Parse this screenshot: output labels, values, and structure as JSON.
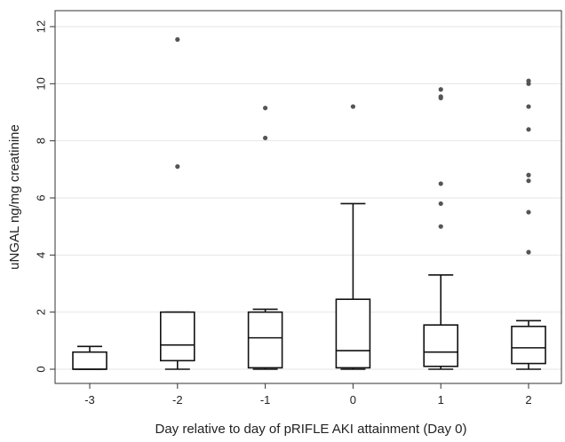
{
  "chart_data": {
    "type": "box",
    "xlabel": "Day relative to day of pRIFLE AKI attainment (Day 0)",
    "ylabel": "uNGAL ng/mg creatinine",
    "ylim": [
      0,
      12.5
    ],
    "yticks": [
      0,
      2,
      4,
      6,
      8,
      10,
      12
    ],
    "ytick_labels": [
      "0",
      "2",
      "4",
      "6",
      "8",
      "10",
      "12"
    ],
    "grid": true,
    "categories": [
      "-3",
      "-2",
      "-1",
      "0",
      "1",
      "2"
    ],
    "boxes": [
      {
        "category": "-3",
        "whisker_low": 0.0,
        "q1": 0.0,
        "median": 0.0,
        "q3": 0.6,
        "whisker_high": 0.8,
        "outliers": []
      },
      {
        "category": "-2",
        "whisker_low": 0.0,
        "q1": 0.3,
        "median": 0.85,
        "q3": 2.0,
        "whisker_high": 2.0,
        "outliers": [
          7.1,
          11.55
        ]
      },
      {
        "category": "-1",
        "whisker_low": 0.0,
        "q1": 0.05,
        "median": 1.1,
        "q3": 2.0,
        "whisker_high": 2.1,
        "outliers": [
          8.1,
          9.15
        ]
      },
      {
        "category": "0",
        "whisker_low": 0.0,
        "q1": 0.05,
        "median": 0.65,
        "q3": 2.45,
        "whisker_high": 5.8,
        "outliers": [
          9.2
        ]
      },
      {
        "category": "1",
        "whisker_low": 0.0,
        "q1": 0.1,
        "median": 0.6,
        "q3": 1.55,
        "whisker_high": 3.3,
        "outliers": [
          5.0,
          5.8,
          6.5,
          9.5,
          9.55,
          9.8
        ]
      },
      {
        "category": "2",
        "whisker_low": 0.0,
        "q1": 0.2,
        "median": 0.75,
        "q3": 1.5,
        "whisker_high": 1.7,
        "outliers": [
          4.1,
          5.5,
          6.6,
          6.8,
          8.4,
          9.2,
          10.0,
          10.1
        ]
      }
    ]
  }
}
